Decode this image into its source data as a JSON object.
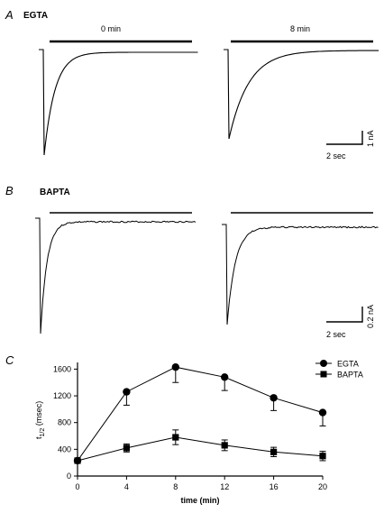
{
  "panels": {
    "a": {
      "letter": "A",
      "label": "EGTA",
      "sweeps": [
        "0 min",
        "8 min"
      ],
      "scale": {
        "y": "1 nA",
        "x": "2 sec"
      }
    },
    "b": {
      "letter": "B",
      "label": "BAPTA",
      "scale": {
        "y": "0.2 nA",
        "x": "2 sec"
      }
    },
    "c": {
      "letter": "C"
    }
  },
  "chart_data": {
    "type": "line",
    "xlabel": "time (min)",
    "ylabel": "t",
    "ylabel_sub": "1/2",
    "ylabel_unit": "(msec)",
    "xlim": [
      0,
      20
    ],
    "ylim": [
      0,
      1700
    ],
    "xticks": [
      0,
      4,
      8,
      12,
      16,
      20
    ],
    "yticks": [
      0,
      400,
      800,
      1200,
      1600
    ],
    "legend_position": "top-right",
    "grid": false,
    "series": [
      {
        "name": "EGTA",
        "marker": "circle",
        "x": [
          0,
          4,
          8,
          12,
          16,
          20
        ],
        "y": [
          230,
          1260,
          1630,
          1480,
          1170,
          950
        ],
        "err": [
          0,
          200,
          230,
          200,
          190,
          200
        ]
      },
      {
        "name": "BAPTA",
        "marker": "square",
        "x": [
          0,
          4,
          8,
          12,
          16,
          20
        ],
        "y": [
          230,
          420,
          580,
          460,
          360,
          300
        ],
        "err": [
          0,
          60,
          110,
          80,
          70,
          70
        ]
      }
    ]
  }
}
